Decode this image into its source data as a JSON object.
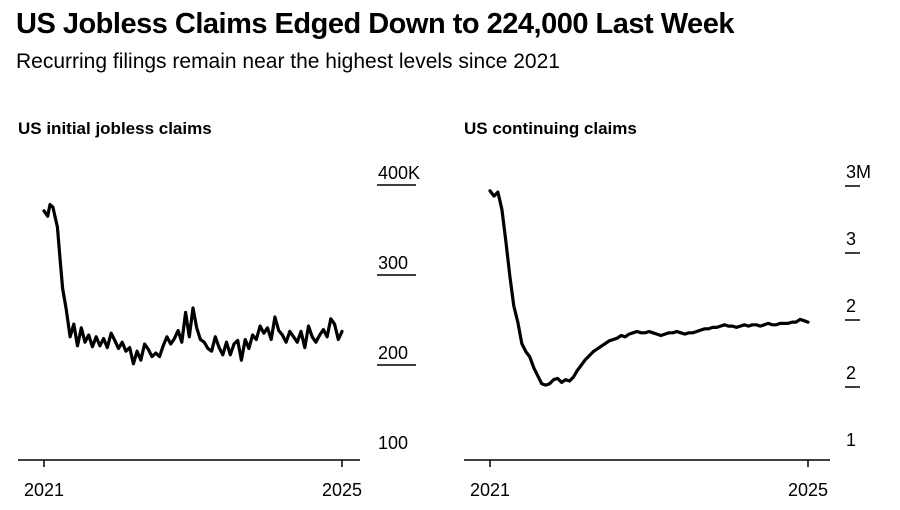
{
  "title": "US Jobless Claims Edged Down to 224,000 Last Week",
  "subtitle": "Recurring filings remain near the highest levels since 2021",
  "colors": {
    "line": "#000000",
    "background": "#ffffff"
  },
  "chart_data": [
    {
      "type": "line",
      "title": "US initial jobless claims",
      "unit": "thousands",
      "x_tick_labels": [
        "2021",
        "2025"
      ],
      "x_domain": [
        2021.0,
        2025.0
      ],
      "y_tick_labels": [
        "400K",
        "300",
        "200",
        "100"
      ],
      "y_ticks": [
        400,
        300,
        200,
        100
      ],
      "ylim": [
        100,
        400
      ],
      "grid": false,
      "series": [
        {
          "x": [
            2021.0,
            2021.05,
            2021.08,
            2021.12,
            2021.18,
            2021.22,
            2021.25,
            2021.3,
            2021.35,
            2021.4,
            2021.45,
            2021.5,
            2021.55,
            2021.6,
            2021.65,
            2021.7,
            2021.75,
            2021.8,
            2021.85,
            2021.9,
            2021.95,
            2022.0,
            2022.05,
            2022.1,
            2022.15,
            2022.2,
            2022.25,
            2022.3,
            2022.35,
            2022.4,
            2022.45,
            2022.5,
            2022.55,
            2022.6,
            2022.65,
            2022.7,
            2022.75,
            2022.8,
            2022.85,
            2022.9,
            2022.95,
            2023.0,
            2023.05,
            2023.1,
            2023.15,
            2023.2,
            2023.25,
            2023.3,
            2023.35,
            2023.4,
            2023.45,
            2023.5,
            2023.55,
            2023.6,
            2023.65,
            2023.7,
            2023.75,
            2023.8,
            2023.85,
            2023.9,
            2023.95,
            2024.0,
            2024.05,
            2024.1,
            2024.15,
            2024.2,
            2024.25,
            2024.3,
            2024.35,
            2024.4,
            2024.45,
            2024.5,
            2024.55,
            2024.6,
            2024.65,
            2024.7,
            2024.75,
            2024.8,
            2024.85,
            2024.9,
            2024.95,
            2025.0
          ],
          "values": [
            358,
            352,
            365,
            362,
            340,
            300,
            272,
            248,
            218,
            232,
            208,
            228,
            212,
            220,
            207,
            218,
            208,
            216,
            206,
            222,
            214,
            205,
            212,
            202,
            206,
            188,
            202,
            192,
            210,
            204,
            196,
            200,
            196,
            208,
            218,
            210,
            216,
            225,
            212,
            245,
            218,
            250,
            228,
            215,
            212,
            205,
            202,
            218,
            206,
            198,
            212,
            198,
            210,
            214,
            192,
            215,
            205,
            220,
            215,
            230,
            222,
            228,
            215,
            240,
            225,
            220,
            212,
            224,
            218,
            212,
            224,
            206,
            230,
            218,
            212,
            220,
            226,
            218,
            238,
            232,
            215,
            224
          ]
        }
      ]
    },
    {
      "type": "line",
      "title": "US continuing claims",
      "unit": "millions",
      "x_tick_labels": [
        "2021",
        "2025"
      ],
      "x_domain": [
        2021.0,
        2025.0
      ],
      "y_tick_labels": [
        "3M",
        "3",
        "2",
        "2",
        "1"
      ],
      "y_ticks": [
        3.0,
        2.5,
        2.0,
        1.5,
        1.0
      ],
      "ylim": [
        1.0,
        3.0
      ],
      "grid": false,
      "series": [
        {
          "x": [
            2021.0,
            2021.05,
            2021.1,
            2021.15,
            2021.2,
            2021.25,
            2021.3,
            2021.35,
            2021.4,
            2021.45,
            2021.5,
            2021.55,
            2021.6,
            2021.65,
            2021.7,
            2021.75,
            2021.8,
            2021.85,
            2021.9,
            2021.95,
            2022.0,
            2022.05,
            2022.1,
            2022.15,
            2022.2,
            2022.25,
            2022.3,
            2022.35,
            2022.4,
            2022.45,
            2022.5,
            2022.55,
            2022.6,
            2022.65,
            2022.7,
            2022.75,
            2022.8,
            2022.85,
            2022.9,
            2022.95,
            2023.0,
            2023.05,
            2023.1,
            2023.15,
            2023.2,
            2023.25,
            2023.3,
            2023.35,
            2023.4,
            2023.45,
            2023.5,
            2023.55,
            2023.6,
            2023.65,
            2023.7,
            2023.75,
            2023.8,
            2023.85,
            2023.9,
            2023.95,
            2024.0,
            2024.05,
            2024.1,
            2024.15,
            2024.2,
            2024.25,
            2024.3,
            2024.35,
            2024.4,
            2024.45,
            2024.5,
            2024.55,
            2024.6,
            2024.65,
            2024.7,
            2024.75,
            2024.8,
            2024.85,
            2024.9,
            2024.95,
            2025.0
          ],
          "values": [
            2.86,
            2.82,
            2.85,
            2.72,
            2.48,
            2.22,
            2.0,
            1.88,
            1.72,
            1.66,
            1.62,
            1.54,
            1.48,
            1.42,
            1.41,
            1.42,
            1.45,
            1.46,
            1.43,
            1.45,
            1.44,
            1.47,
            1.52,
            1.56,
            1.6,
            1.63,
            1.66,
            1.68,
            1.7,
            1.72,
            1.74,
            1.75,
            1.76,
            1.78,
            1.77,
            1.79,
            1.8,
            1.81,
            1.8,
            1.8,
            1.81,
            1.8,
            1.79,
            1.78,
            1.79,
            1.8,
            1.8,
            1.81,
            1.8,
            1.79,
            1.8,
            1.8,
            1.81,
            1.82,
            1.83,
            1.83,
            1.84,
            1.84,
            1.85,
            1.86,
            1.85,
            1.85,
            1.84,
            1.85,
            1.86,
            1.85,
            1.86,
            1.86,
            1.85,
            1.86,
            1.87,
            1.86,
            1.86,
            1.87,
            1.87,
            1.87,
            1.88,
            1.88,
            1.9,
            1.89,
            1.88
          ]
        }
      ]
    }
  ]
}
